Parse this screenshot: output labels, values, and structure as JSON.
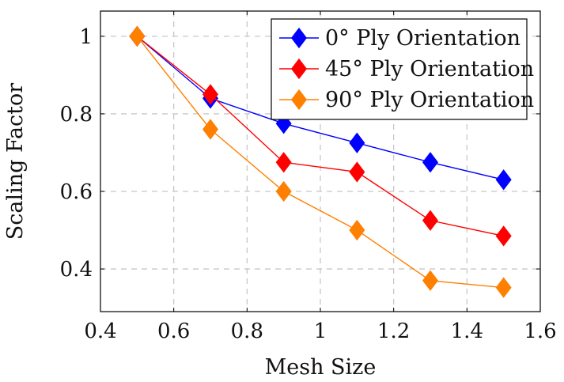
{
  "chart_data": {
    "type": "line",
    "title": "",
    "xlabel": "Mesh Size",
    "ylabel": "Scaling Factor",
    "x": [
      0.5,
      0.7,
      0.9,
      1.1,
      1.3,
      1.5
    ],
    "xlim": [
      0.4,
      1.6
    ],
    "ylim": [
      0.29,
      1.065
    ],
    "xticks": [
      0.4,
      0.6,
      0.8,
      1.0,
      1.2,
      1.4,
      1.6
    ],
    "xtick_labels": [
      "0.4",
      "0.6",
      "0.8",
      "1",
      "1.2",
      "1.4",
      "1.6"
    ],
    "yticks": [
      0.4,
      0.6,
      0.8,
      1.0
    ],
    "ytick_labels": [
      "0.4",
      "0.6",
      "0.8",
      "1"
    ],
    "grid": true,
    "legend_position": "top-right",
    "series": [
      {
        "name": "0° Ply Orientation",
        "color": "#0000ff",
        "marker": "diamond",
        "values": [
          1.0,
          0.84,
          0.775,
          0.725,
          0.675,
          0.63
        ]
      },
      {
        "name": "45° Ply Orientation",
        "color": "#ff0000",
        "marker": "diamond",
        "values": [
          1.0,
          0.85,
          0.675,
          0.65,
          0.525,
          0.485
        ]
      },
      {
        "name": "90° Ply Orientation",
        "color": "#ff8000",
        "marker": "diamond",
        "values": [
          1.0,
          0.76,
          0.6,
          0.5,
          0.37,
          0.352
        ]
      }
    ]
  }
}
